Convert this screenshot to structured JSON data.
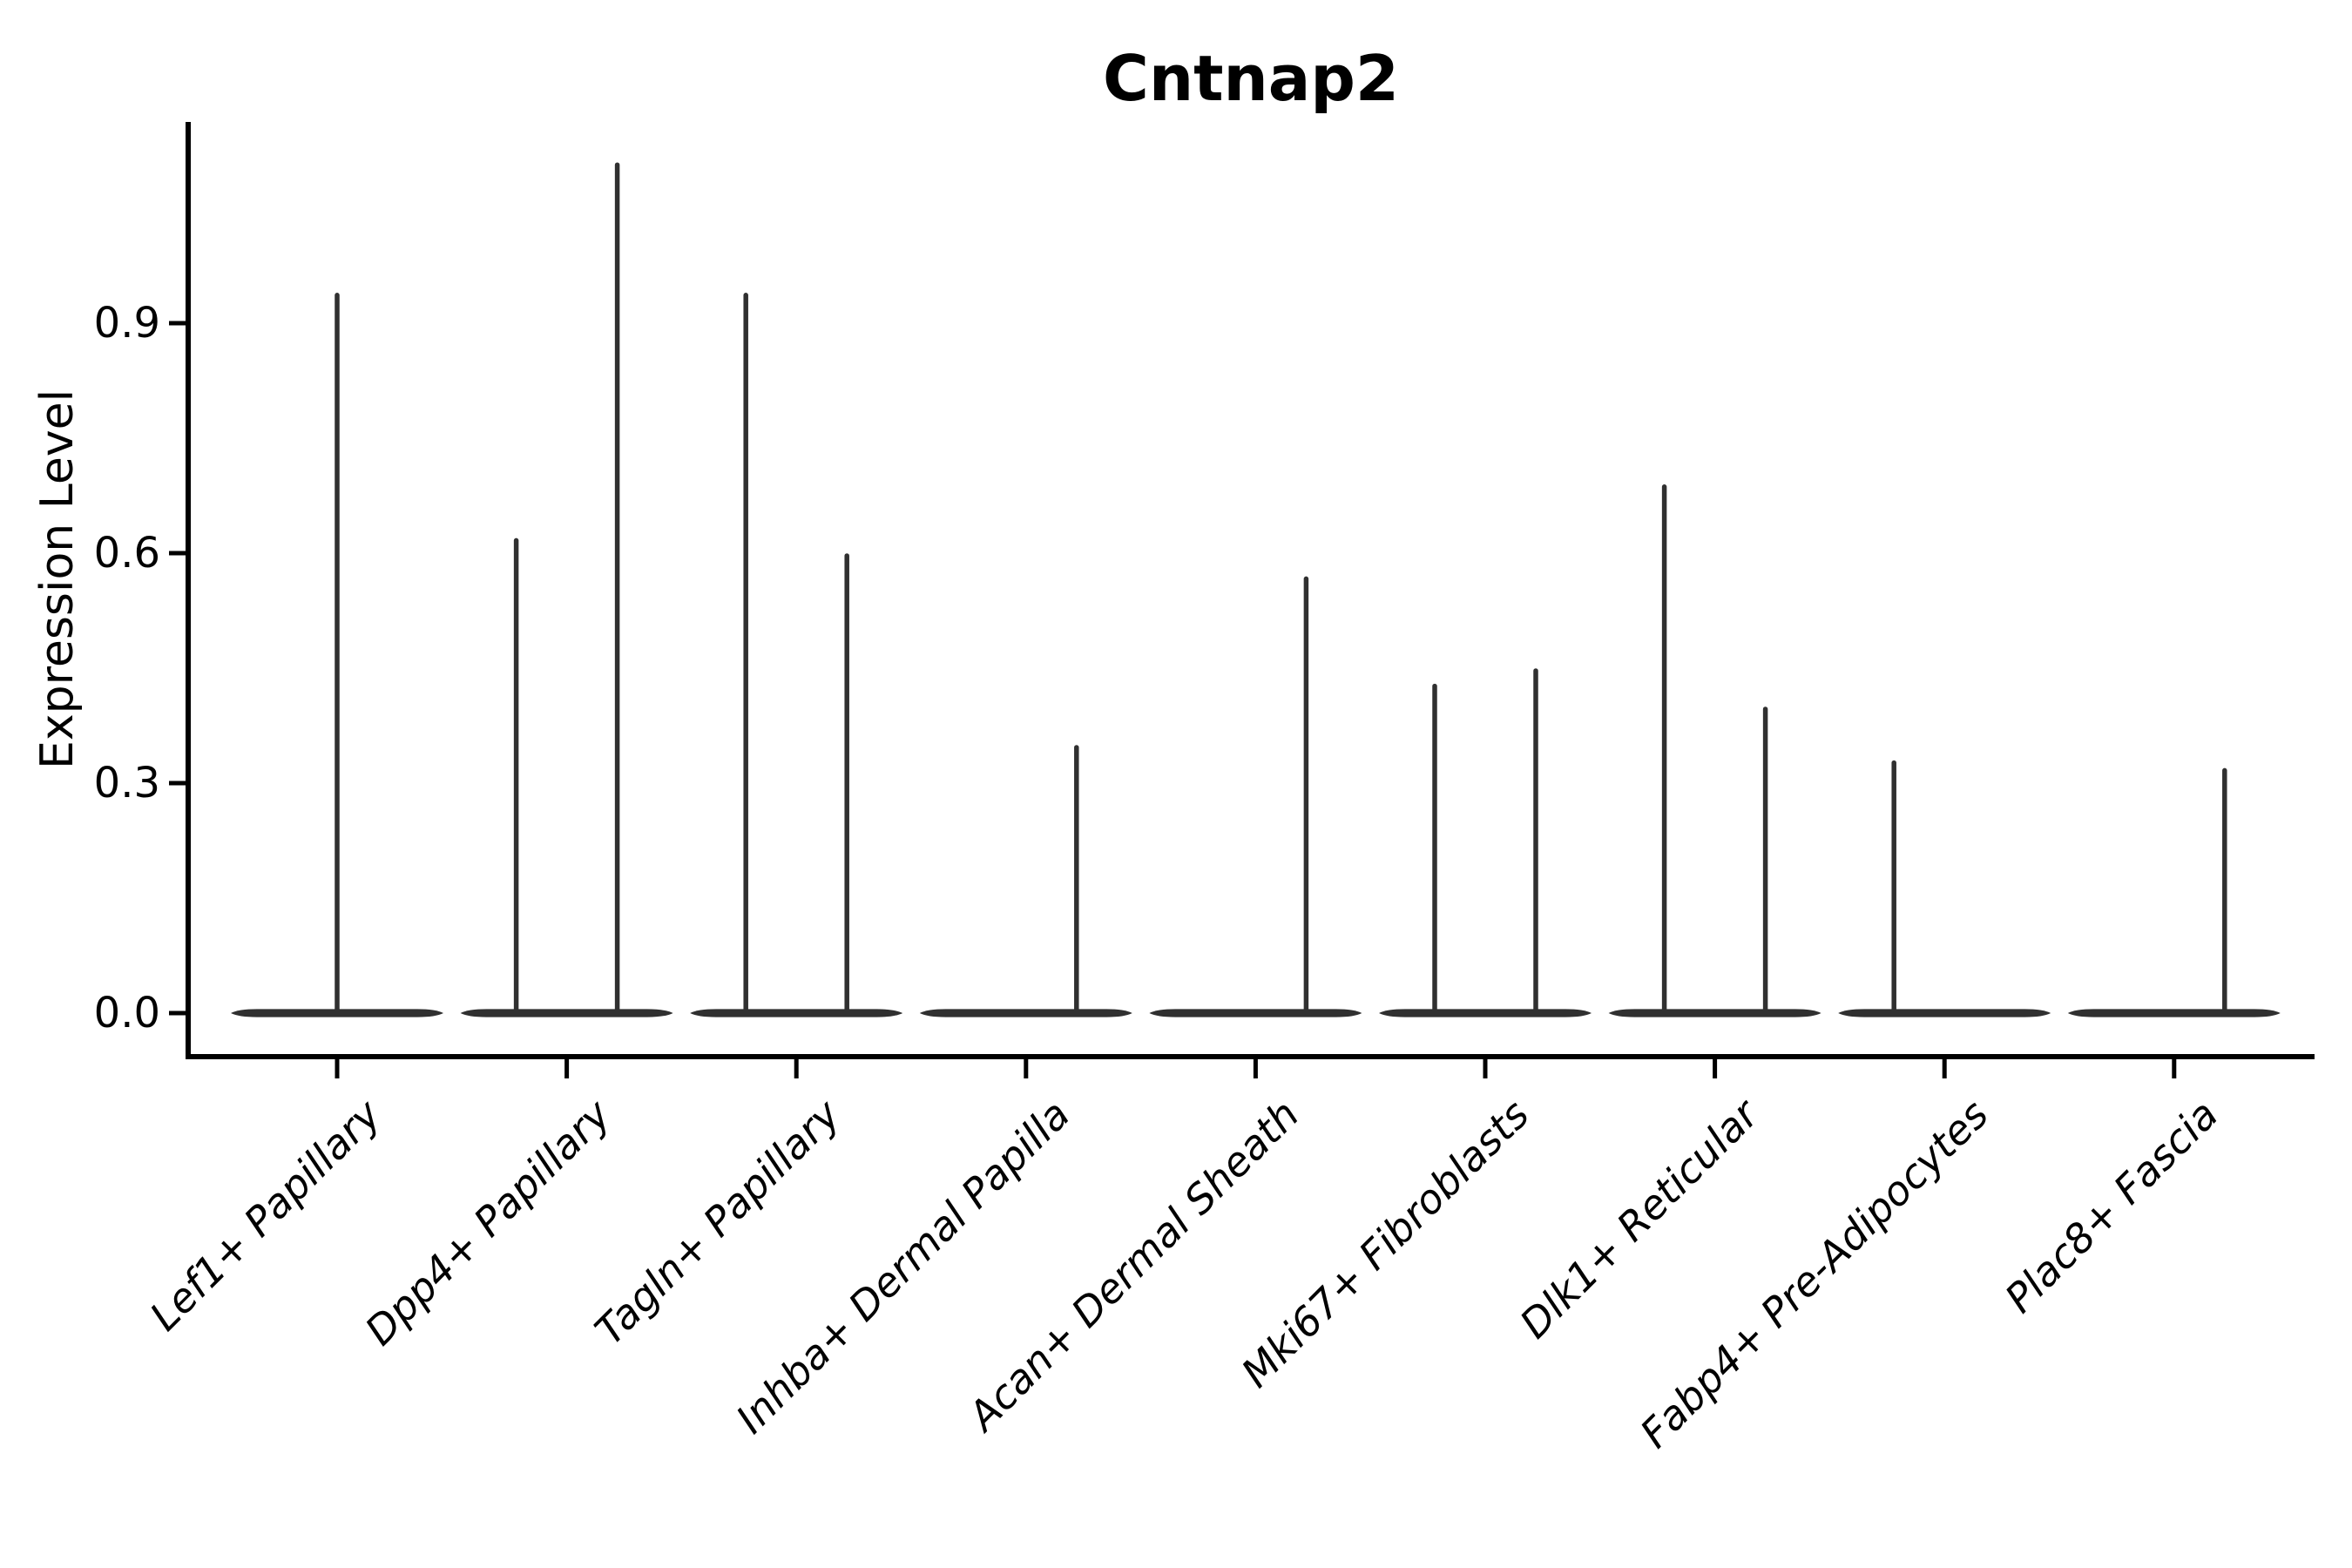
{
  "chart_data": {
    "type": "violin",
    "title": "Cntnap2",
    "xlabel": "",
    "ylabel": "Expression Level",
    "ylim": [
      -0.06,
      1.16
    ],
    "grid": false,
    "legend": false,
    "yticks": [
      {
        "label": "0.0",
        "value": 0.0
      },
      {
        "label": "0.3",
        "value": 0.3
      },
      {
        "label": "0.6",
        "value": 0.6
      },
      {
        "label": "0.9",
        "value": 0.9
      }
    ],
    "categories": [
      "Lef1+ Papillary",
      "Dpp4+ Papillary",
      "Tagln+ Papillary",
      "Inhba+ Dermal Papilla",
      "Acan+ Dermal Sheath",
      "Mki67+ Fibroblasts",
      "Dlk1+ Reticular",
      "Fabp4+ Pre-Adipocytes",
      "Plac8+ Fascia"
    ],
    "description": "Violin plot of Cntnap2 expression per cluster; nearly all cells are at 0, so each violin renders as a flat bar at 0 with thin vertical spikes reaching the maximum expression values.",
    "violins": [
      {
        "category": "Lef1+ Papillary",
        "spikes": [
          {
            "pos": "center",
            "value": 0.94
          }
        ]
      },
      {
        "category": "Dpp4+ Papillary",
        "spikes": [
          {
            "pos": "left",
            "value": 0.62
          },
          {
            "pos": "right",
            "value": 1.11
          }
        ]
      },
      {
        "category": "Tagln+ Papillary",
        "spikes": [
          {
            "pos": "left",
            "value": 0.94
          },
          {
            "pos": "right",
            "value": 0.6
          }
        ]
      },
      {
        "category": "Inhba+ Dermal Papilla",
        "spikes": [
          {
            "pos": "right",
            "value": 0.35
          }
        ]
      },
      {
        "category": "Acan+ Dermal Sheath",
        "spikes": [
          {
            "pos": "right",
            "value": 0.57
          }
        ]
      },
      {
        "category": "Mki67+ Fibroblasts",
        "spikes": [
          {
            "pos": "left",
            "value": 0.43
          },
          {
            "pos": "right",
            "value": 0.45
          }
        ]
      },
      {
        "category": "Dlk1+ Reticular",
        "spikes": [
          {
            "pos": "left",
            "value": 0.69
          },
          {
            "pos": "right",
            "value": 0.4
          }
        ]
      },
      {
        "category": "Fabp4+ Pre-Adipocytes",
        "spikes": [
          {
            "pos": "left",
            "value": 0.33
          }
        ]
      },
      {
        "category": "Plac8+ Fascia",
        "spikes": [
          {
            "pos": "right",
            "value": 0.32
          }
        ]
      }
    ],
    "colors": {
      "violin": "#303030",
      "axis": "#000000",
      "text": "#000000",
      "background": "#ffffff"
    }
  }
}
